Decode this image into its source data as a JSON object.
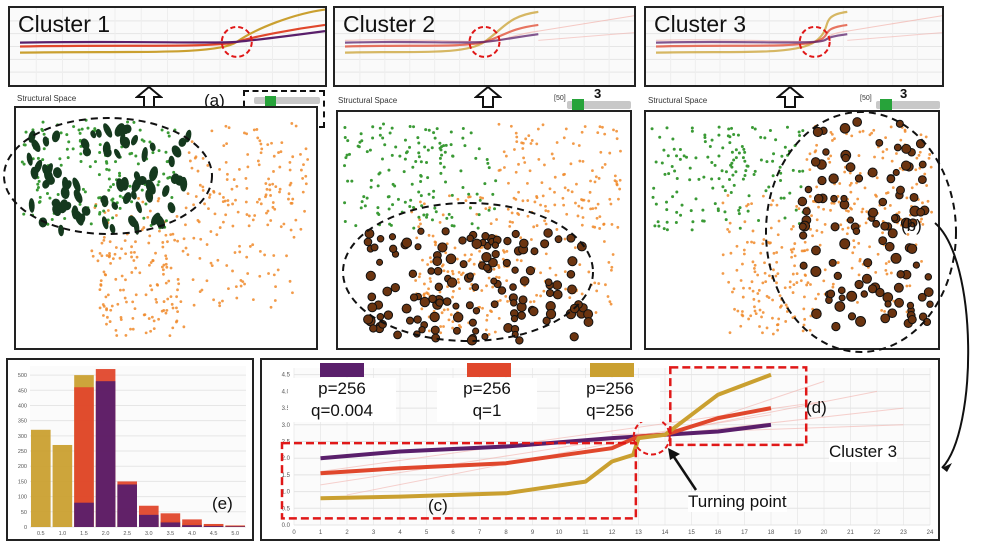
{
  "colors": {
    "purple": "#5a1f6b",
    "red": "#e0472c",
    "gold": "#caa030",
    "pink": "#f2b3ad",
    "orange_pts": "#f08a2a",
    "green_pts": "#3a9a35",
    "dark_green": "#15391e",
    "brown": "#6b3410",
    "slider_green": "#27a33a",
    "guide_red": "#e01818"
  },
  "clusters": [
    {
      "title": "Cluster 1",
      "space_label": "Structural Space"
    },
    {
      "title": "Cluster 2",
      "space_label": "Structural Space",
      "slider_value": "[50]",
      "slider_number": "3"
    },
    {
      "title": "Cluster 3",
      "space_label": "Structural Space",
      "slider_value": "[50]",
      "slider_number": "3"
    }
  ],
  "callouts": {
    "a": "(a)",
    "b": "(b)",
    "c": "(c)",
    "d": "(d)",
    "e": "(e)",
    "cluster3": "Cluster 3",
    "turning": "Turning point"
  },
  "chart_data": [
    {
      "type": "line",
      "series": [
        {
          "name": "p=256 q=0.004",
          "x": [
            1,
            4,
            8,
            12,
            13,
            14,
            16,
            18
          ],
          "y": [
            2.0,
            2.2,
            2.35,
            2.6,
            2.65,
            2.7,
            2.8,
            3.0
          ]
        },
        {
          "name": "p=256 q=1",
          "x": [
            1,
            4,
            8,
            12,
            13,
            14,
            16,
            18
          ],
          "y": [
            1.55,
            1.7,
            1.85,
            2.3,
            2.65,
            2.7,
            3.2,
            3.5
          ]
        },
        {
          "name": "p=256 q=256",
          "x": [
            1,
            4,
            8,
            11,
            12,
            12.8,
            13,
            14,
            16,
            18
          ],
          "y": [
            0.8,
            0.85,
            0.95,
            1.3,
            1.9,
            2.1,
            2.6,
            2.7,
            3.9,
            4.5
          ]
        }
      ],
      "y_ticks": [
        "0.0",
        "0.5",
        "1.0",
        "1.5",
        "2.0",
        "2.5",
        "3.0",
        "3.5",
        "4.0",
        "4.5"
      ],
      "xlim": [
        0,
        24
      ],
      "ylim": [
        0,
        4.7
      ],
      "grid": true
    },
    {
      "type": "bar",
      "categories": [
        "0.5",
        "1.0",
        "1.5",
        "2.0",
        "2.5",
        "3.0",
        "3.5",
        "4.0",
        "4.5",
        "5.0"
      ],
      "series": [
        {
          "name": "p=256 q=256",
          "values": [
            320,
            270,
            500,
            220,
            60,
            30,
            20,
            12,
            8,
            5
          ]
        },
        {
          "name": "p=256 q=1",
          "values": [
            0,
            0,
            460,
            520,
            150,
            70,
            45,
            25,
            10,
            5
          ]
        },
        {
          "name": "p=256 q=0.004",
          "values": [
            0,
            0,
            80,
            480,
            140,
            40,
            15,
            6,
            3,
            2
          ]
        }
      ],
      "y_ticks": [
        "0",
        "50",
        "100",
        "150",
        "200",
        "250",
        "300",
        "350",
        "400",
        "450",
        "500"
      ],
      "ylim": [
        0,
        530
      ]
    }
  ]
}
